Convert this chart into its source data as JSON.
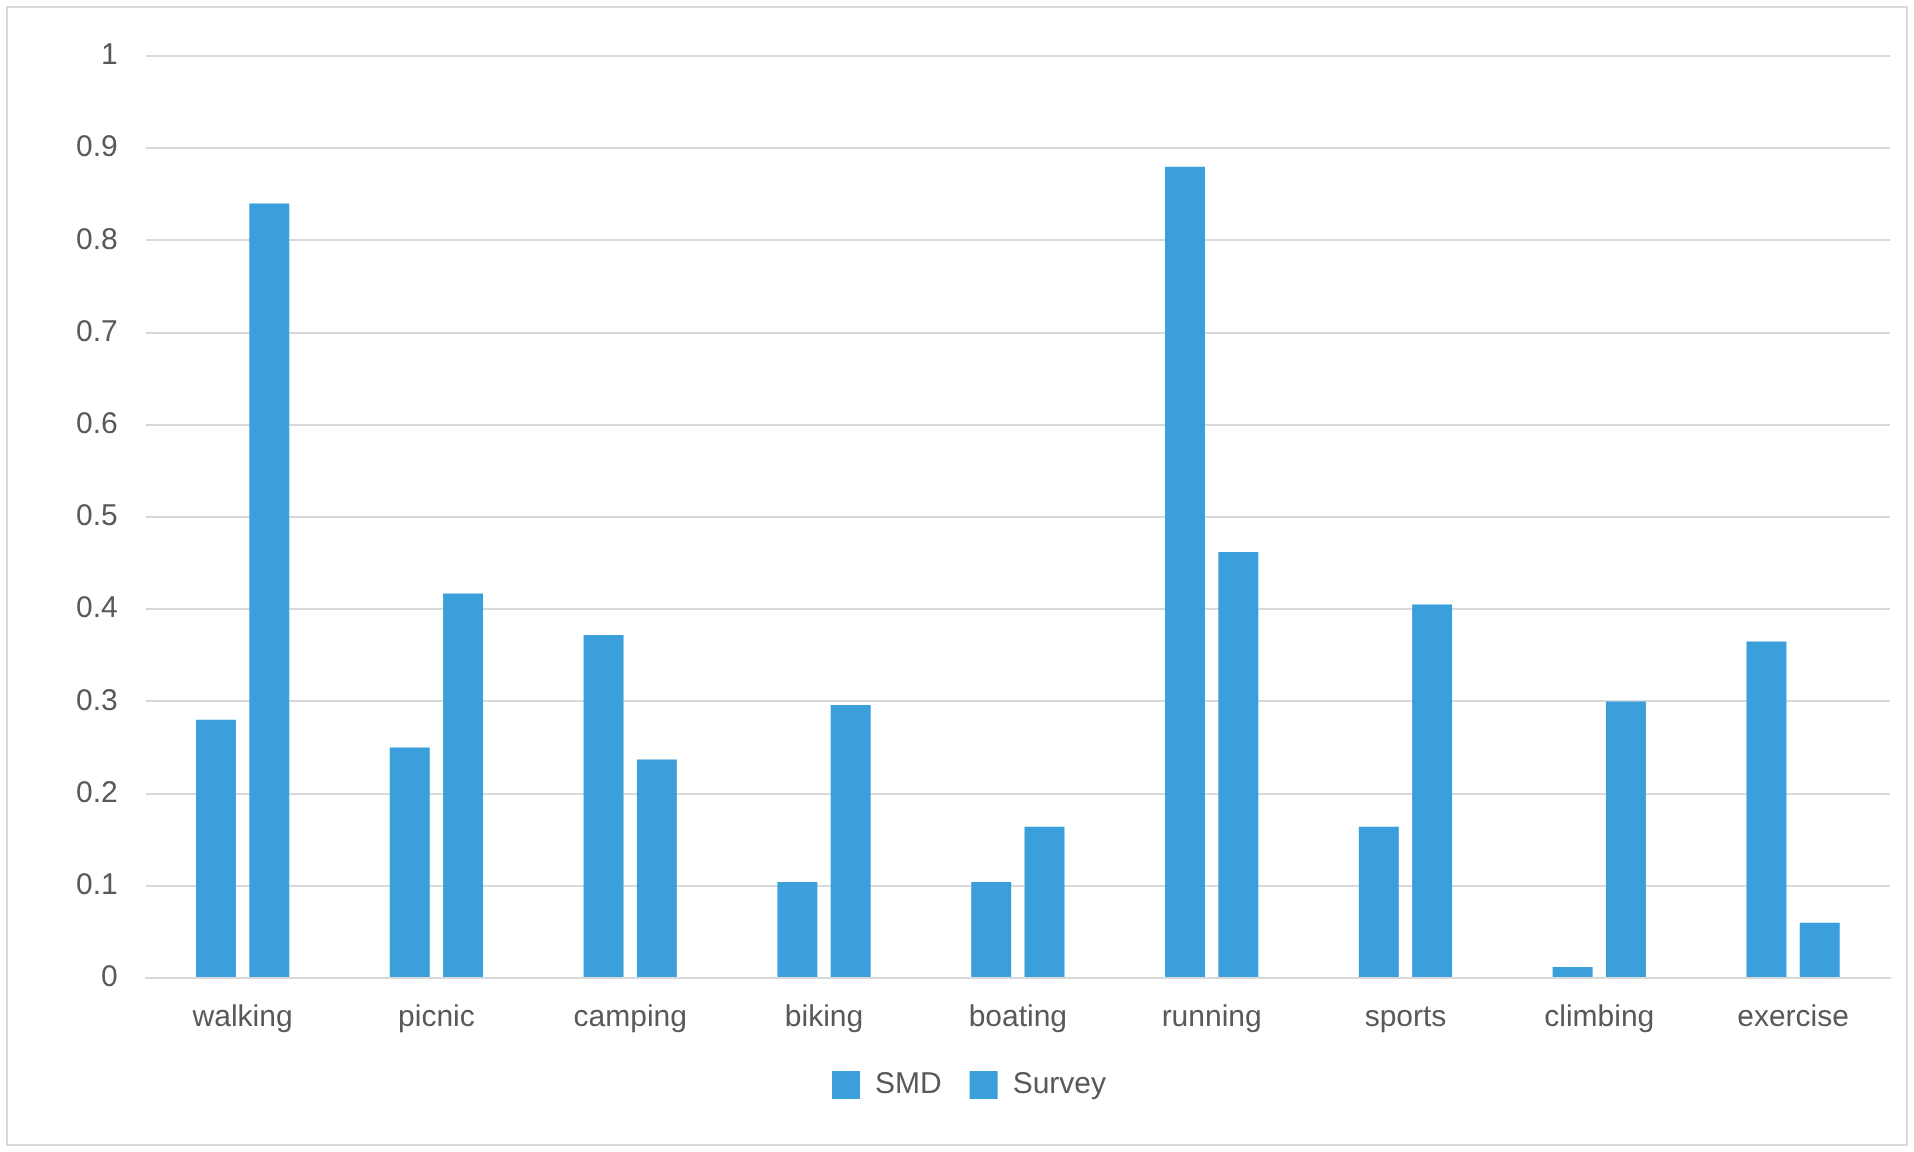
{
  "chart_data": {
    "type": "bar",
    "categories": [
      "walking",
      "picnic",
      "camping",
      "biking",
      "boating",
      "running",
      "sports",
      "climbing",
      "exercise"
    ],
    "series": [
      {
        "name": "SMD",
        "color": "#3b9fdc",
        "values": [
          0.28,
          0.25,
          0.372,
          0.104,
          0.104,
          0.88,
          0.164,
          0.012,
          0.365
        ]
      },
      {
        "name": "Survey",
        "color": "#3b9fdc",
        "values": [
          0.84,
          0.417,
          0.237,
          0.296,
          0.164,
          0.462,
          0.405,
          0.3,
          0.06
        ]
      }
    ],
    "ylim": [
      0,
      1
    ],
    "yticks": [
      0,
      0.1,
      0.2,
      0.3,
      0.4,
      0.5,
      0.6,
      0.7,
      0.8,
      0.9,
      1
    ],
    "grid": "y",
    "legend": "bottom"
  }
}
